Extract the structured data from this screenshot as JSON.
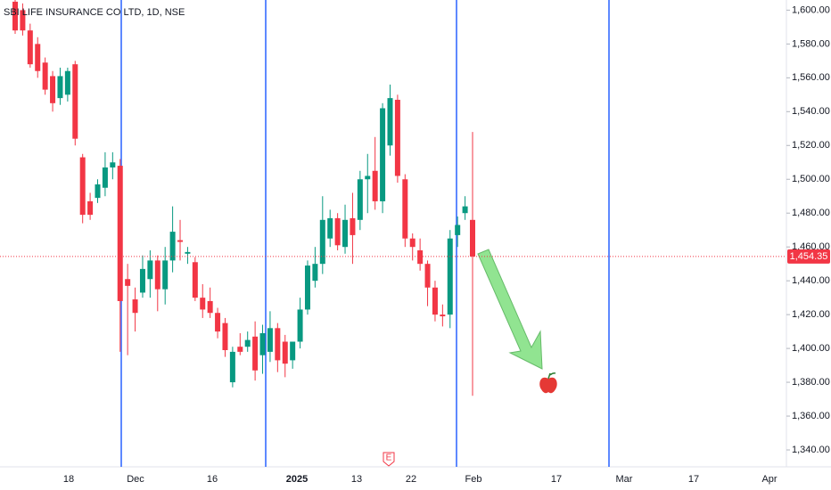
{
  "chart_data": {
    "type": "candlestick",
    "title": "SBI LIFE INSURANCE CO LTD, 1D, NSE",
    "open": [
      1605,
      1600,
      1588,
      1580,
      1569,
      1561,
      1548,
      1550,
      1568,
      1513,
      1487,
      1489,
      1495,
      1507,
      1508,
      1441,
      1429,
      1433,
      1441,
      1452,
      1435,
      1452,
      1464,
      1456,
      1451,
      1430,
      1428,
      1421,
      1415,
      1380,
      1401,
      1401,
      1407,
      1396,
      1398,
      1412,
      1404,
      1393,
      1404,
      1423,
      1440,
      1450,
      1465,
      1477,
      1460,
      1477,
      1476,
      1500,
      1505,
      1487,
      1520,
      1547,
      1500,
      1465,
      1458,
      1450,
      1436,
      1420,
      1420,
      1467,
      1480,
      1476
    ],
    "high": [
      1607,
      1604,
      1592,
      1584,
      1572,
      1564,
      1566,
      1566,
      1570,
      1515,
      1492,
      1500,
      1516,
      1516,
      1512,
      1450,
      1436,
      1455,
      1458,
      1455,
      1460,
      1484,
      1476,
      1460,
      1454,
      1438,
      1436,
      1424,
      1418,
      1401,
      1409,
      1410,
      1416,
      1414,
      1422,
      1415,
      1408,
      1404,
      1430,
      1452,
      1460,
      1490,
      1482,
      1480,
      1485,
      1492,
      1505,
      1515,
      1525,
      1545,
      1556,
      1550,
      1503,
      1468,
      1465,
      1452,
      1440,
      1426,
      1470,
      1478,
      1490,
      1528
    ],
    "low": [
      1586,
      1585,
      1566,
      1560,
      1550,
      1540,
      1544,
      1546,
      1520,
      1474,
      1476,
      1486,
      1490,
      1500,
      1398,
      1396,
      1410,
      1430,
      1430,
      1422,
      1426,
      1445,
      1452,
      1450,
      1428,
      1418,
      1418,
      1406,
      1395,
      1377,
      1396,
      1398,
      1381,
      1385,
      1392,
      1386,
      1383,
      1388,
      1400,
      1420,
      1436,
      1444,
      1460,
      1458,
      1456,
      1450,
      1470,
      1480,
      1482,
      1480,
      1514,
      1498,
      1460,
      1452,
      1446,
      1425,
      1416,
      1413,
      1412,
      1460,
      1476,
      1372
    ],
    "close": [
      1588,
      1588,
      1568,
      1564,
      1553,
      1545,
      1561,
      1564,
      1524,
      1479,
      1479,
      1497,
      1507,
      1510,
      1428,
      1437,
      1421,
      1447,
      1452,
      1435,
      1452,
      1469,
      1463,
      1457,
      1430,
      1423,
      1421,
      1410,
      1399,
      1398,
      1398,
      1405,
      1387,
      1409,
      1412,
      1393,
      1391,
      1404,
      1423,
      1449,
      1450,
      1476,
      1477,
      1461,
      1476,
      1467,
      1500,
      1502,
      1487,
      1542,
      1548,
      1502,
      1465,
      1460,
      1450,
      1436,
      1420,
      1419,
      1465,
      1473,
      1484,
      1454.35
    ],
    "up_color": "#089981",
    "down_color": "#f23645",
    "x_labels": [
      "18",
      "Dec",
      "16",
      "2025",
      "13",
      "22",
      "Feb",
      "17",
      "Mar",
      "17",
      "Apr"
    ],
    "ylim": [
      1330,
      1606
    ],
    "yticks": [
      {
        "value": 1340,
        "label": "1,340.00"
      },
      {
        "value": 1360,
        "label": "1,360.00"
      },
      {
        "value": 1380,
        "label": "1,380.00"
      },
      {
        "value": 1400,
        "label": "1,400.00"
      },
      {
        "value": 1420,
        "label": "1,420.00"
      },
      {
        "value": 1440,
        "label": "1,440.00"
      },
      {
        "value": 1460,
        "label": "1,460.00"
      },
      {
        "value": 1480,
        "label": "1,480.00"
      },
      {
        "value": 1500,
        "label": "1,500.00"
      },
      {
        "value": 1520,
        "label": "1,520.00"
      },
      {
        "value": 1540,
        "label": "1,540.00"
      },
      {
        "value": 1560,
        "label": "1,560.00"
      },
      {
        "value": 1580,
        "label": "1,580.00"
      },
      {
        "value": 1600,
        "label": "1,600.00"
      }
    ],
    "last_price_label": "1,454.35",
    "earnings_marker": "E",
    "grid": false
  }
}
